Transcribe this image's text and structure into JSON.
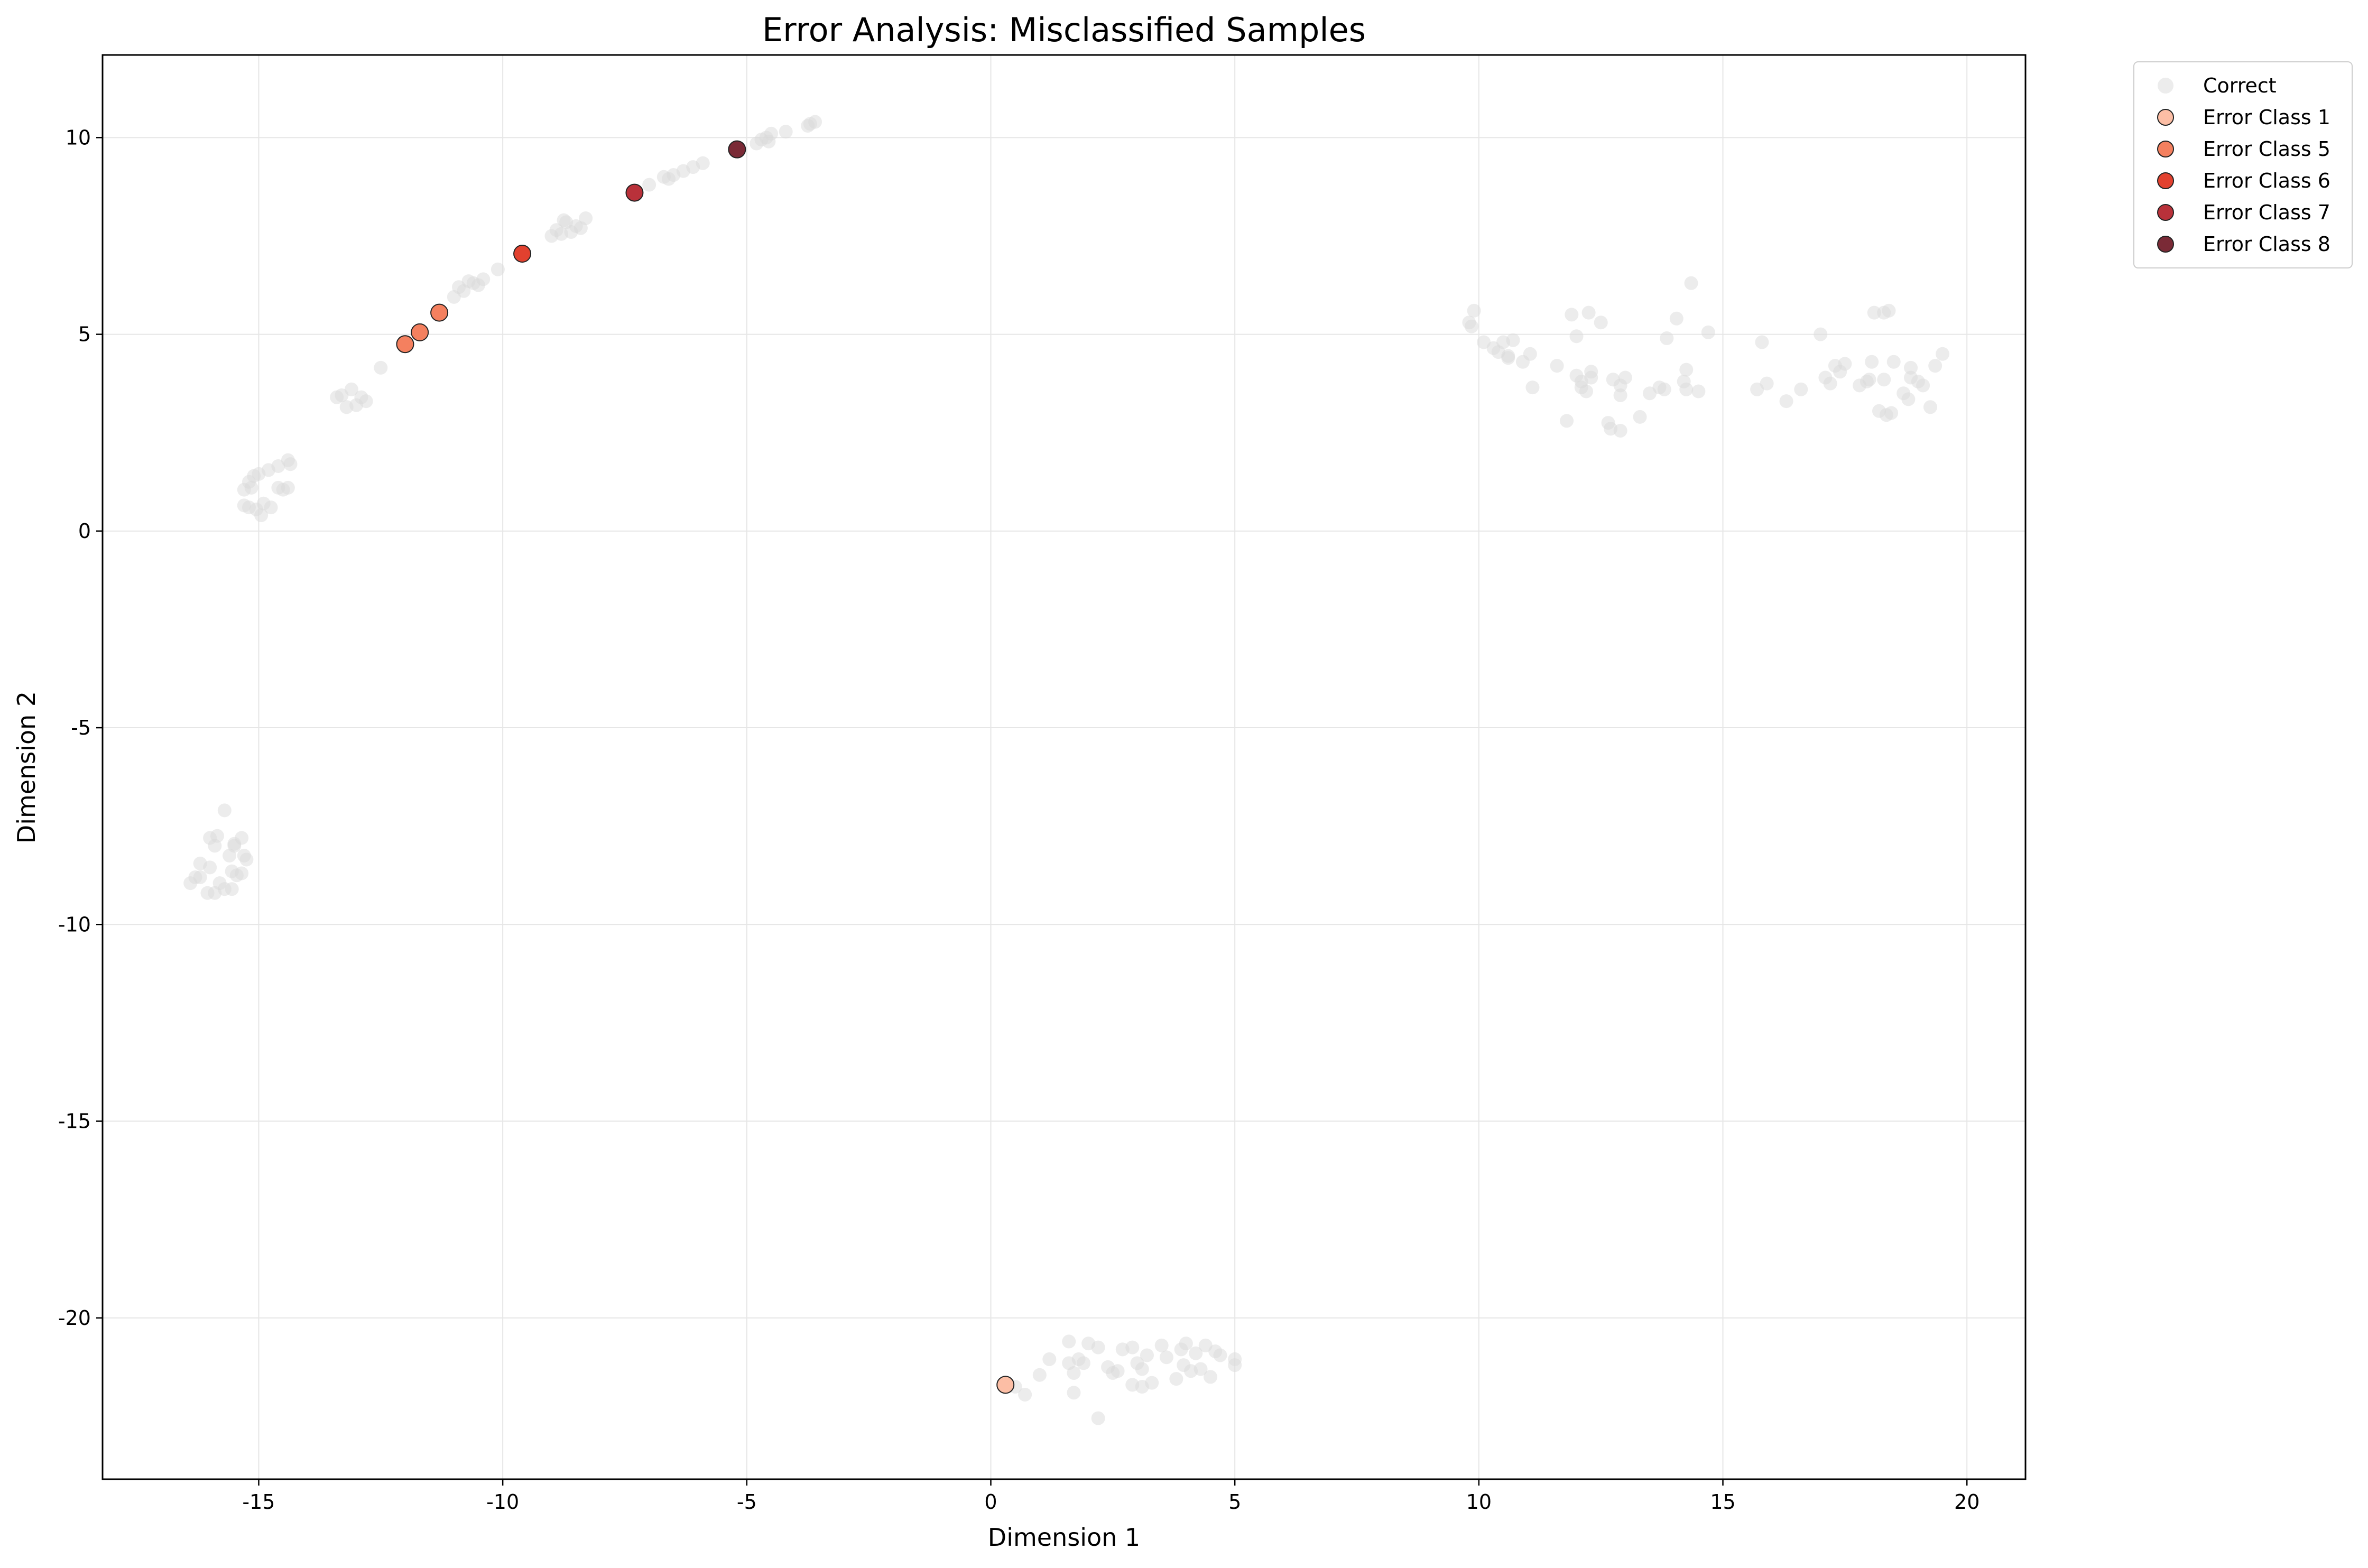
{
  "chart_data": {
    "type": "scatter",
    "title": "Error Analysis: Misclassified Samples",
    "xlabel": "Dimension 1",
    "ylabel": "Dimension 2",
    "xlim": [
      -18.2,
      21.2
    ],
    "ylim": [
      -24.1,
      12.1
    ],
    "xticks": [
      -15,
      -10,
      -5,
      0,
      5,
      10,
      15,
      20
    ],
    "yticks": [
      10,
      5,
      0,
      -5,
      -10,
      -15,
      -20
    ],
    "grid": true,
    "legend_position": "outside-top-right",
    "series": [
      {
        "name": "Correct",
        "color": "#d9d9d9",
        "opacity": 0.5,
        "edge": "none",
        "points": [
          [
            -12.5,
            4.15
          ],
          [
            -13.3,
            3.45
          ],
          [
            -13.1,
            3.6
          ],
          [
            -12.9,
            3.4
          ],
          [
            -13.0,
            3.2
          ],
          [
            -13.2,
            3.15
          ],
          [
            -12.8,
            3.3
          ],
          [
            -13.4,
            3.4
          ],
          [
            -15.3,
            1.05
          ],
          [
            -15.2,
            1.25
          ],
          [
            -15.0,
            1.45
          ],
          [
            -14.8,
            1.55
          ],
          [
            -14.6,
            1.65
          ],
          [
            -14.4,
            1.8
          ],
          [
            -14.35,
            1.7
          ],
          [
            -15.1,
            1.4
          ],
          [
            -14.6,
            1.1
          ],
          [
            -14.5,
            1.05
          ],
          [
            -14.4,
            1.1
          ],
          [
            -14.9,
            0.7
          ],
          [
            -15.2,
            0.6
          ],
          [
            -15.05,
            0.55
          ],
          [
            -14.95,
            0.4
          ],
          [
            -14.75,
            0.6
          ],
          [
            -15.3,
            0.65
          ],
          [
            -15.15,
            1.1
          ],
          [
            -10.8,
            6.1
          ],
          [
            -10.6,
            6.3
          ],
          [
            -10.4,
            6.4
          ],
          [
            -10.5,
            6.25
          ],
          [
            -10.1,
            6.65
          ],
          [
            -10.9,
            6.2
          ],
          [
            -11.0,
            5.95
          ],
          [
            -10.7,
            6.35
          ],
          [
            -8.9,
            7.65
          ],
          [
            -8.7,
            7.85
          ],
          [
            -8.5,
            7.75
          ],
          [
            -8.3,
            7.95
          ],
          [
            -8.8,
            7.55
          ],
          [
            -8.6,
            7.6
          ],
          [
            -8.4,
            7.7
          ],
          [
            -9.0,
            7.5
          ],
          [
            -8.75,
            7.9
          ],
          [
            -7.0,
            8.8
          ],
          [
            -6.7,
            9.0
          ],
          [
            -6.5,
            9.05
          ],
          [
            -6.3,
            9.15
          ],
          [
            -6.1,
            9.25
          ],
          [
            -5.9,
            9.35
          ],
          [
            -6.6,
            8.95
          ],
          [
            -4.8,
            9.85
          ],
          [
            -4.6,
            10.0
          ],
          [
            -4.5,
            10.1
          ],
          [
            -4.2,
            10.15
          ],
          [
            -4.7,
            9.95
          ],
          [
            -4.55,
            9.9
          ],
          [
            -3.7,
            10.35
          ],
          [
            -3.6,
            10.4
          ],
          [
            -3.75,
            10.3
          ],
          [
            -15.7,
            -7.1
          ],
          [
            -16.0,
            -7.8
          ],
          [
            -15.85,
            -7.75
          ],
          [
            -15.5,
            -7.95
          ],
          [
            -15.35,
            -7.8
          ],
          [
            -15.9,
            -8.0
          ],
          [
            -16.2,
            -8.45
          ],
          [
            -16.0,
            -8.55
          ],
          [
            -15.6,
            -8.25
          ],
          [
            -15.3,
            -8.25
          ],
          [
            -15.25,
            -8.35
          ],
          [
            -16.3,
            -8.8
          ],
          [
            -16.2,
            -8.8
          ],
          [
            -15.55,
            -8.65
          ],
          [
            -15.45,
            -8.75
          ],
          [
            -15.35,
            -8.7
          ],
          [
            -16.4,
            -8.95
          ],
          [
            -15.8,
            -8.95
          ],
          [
            -15.7,
            -9.1
          ],
          [
            -15.55,
            -9.1
          ],
          [
            -16.05,
            -9.2
          ],
          [
            -15.9,
            -9.2
          ],
          [
            -15.5,
            -8.0
          ],
          [
            0.7,
            -21.95
          ],
          [
            1.0,
            -21.45
          ],
          [
            1.2,
            -21.05
          ],
          [
            1.6,
            -20.6
          ],
          [
            1.6,
            -21.15
          ],
          [
            1.7,
            -21.4
          ],
          [
            1.8,
            -21.05
          ],
          [
            1.9,
            -21.15
          ],
          [
            2.0,
            -20.65
          ],
          [
            2.2,
            -20.75
          ],
          [
            2.2,
            -22.55
          ],
          [
            1.7,
            -21.9
          ],
          [
            2.4,
            -21.25
          ],
          [
            2.5,
            -21.4
          ],
          [
            2.6,
            -21.35
          ],
          [
            2.7,
            -20.8
          ],
          [
            2.9,
            -20.75
          ],
          [
            2.9,
            -21.7
          ],
          [
            3.0,
            -21.15
          ],
          [
            3.1,
            -21.3
          ],
          [
            3.1,
            -21.75
          ],
          [
            3.2,
            -20.95
          ],
          [
            3.3,
            -21.65
          ],
          [
            3.5,
            -20.7
          ],
          [
            3.6,
            -21.0
          ],
          [
            3.8,
            -21.55
          ],
          [
            3.9,
            -20.8
          ],
          [
            3.95,
            -21.2
          ],
          [
            4.0,
            -20.65
          ],
          [
            4.1,
            -21.35
          ],
          [
            4.2,
            -20.9
          ],
          [
            4.3,
            -21.3
          ],
          [
            4.4,
            -20.7
          ],
          [
            4.5,
            -21.5
          ],
          [
            4.6,
            -20.85
          ],
          [
            4.7,
            -20.95
          ],
          [
            5.0,
            -21.05
          ],
          [
            5.0,
            -21.2
          ],
          [
            0.5,
            -21.75
          ],
          [
            9.8,
            5.3
          ],
          [
            9.9,
            5.6
          ],
          [
            9.85,
            5.2
          ],
          [
            10.1,
            4.8
          ],
          [
            10.3,
            4.65
          ],
          [
            10.4,
            4.55
          ],
          [
            10.5,
            4.8
          ],
          [
            10.6,
            4.4
          ],
          [
            10.6,
            4.45
          ],
          [
            10.7,
            4.85
          ],
          [
            10.9,
            4.3
          ],
          [
            11.05,
            4.5
          ],
          [
            11.1,
            3.65
          ],
          [
            11.6,
            4.2
          ],
          [
            11.8,
            2.8
          ],
          [
            11.9,
            5.5
          ],
          [
            12.0,
            4.95
          ],
          [
            12.0,
            3.95
          ],
          [
            12.1,
            3.8
          ],
          [
            12.1,
            3.65
          ],
          [
            12.2,
            3.55
          ],
          [
            12.25,
            5.55
          ],
          [
            12.3,
            3.9
          ],
          [
            12.3,
            4.05
          ],
          [
            12.5,
            5.3
          ],
          [
            12.65,
            2.75
          ],
          [
            12.7,
            2.6
          ],
          [
            12.75,
            3.85
          ],
          [
            12.9,
            2.55
          ],
          [
            12.9,
            3.45
          ],
          [
            12.9,
            3.7
          ],
          [
            13.0,
            3.9
          ],
          [
            13.3,
            2.9
          ],
          [
            13.5,
            3.5
          ],
          [
            13.7,
            3.65
          ],
          [
            13.8,
            3.6
          ],
          [
            13.85,
            4.9
          ],
          [
            14.05,
            5.4
          ],
          [
            14.2,
            3.8
          ],
          [
            14.25,
            4.1
          ],
          [
            14.25,
            3.6
          ],
          [
            14.35,
            6.3
          ],
          [
            14.5,
            3.55
          ],
          [
            14.7,
            5.05
          ],
          [
            15.7,
            3.6
          ],
          [
            15.8,
            4.8
          ],
          [
            15.9,
            3.75
          ],
          [
            16.3,
            3.3
          ],
          [
            16.6,
            3.6
          ],
          [
            17.0,
            5.0
          ],
          [
            17.1,
            3.9
          ],
          [
            17.2,
            3.75
          ],
          [
            17.3,
            4.2
          ],
          [
            17.4,
            4.05
          ],
          [
            17.5,
            4.25
          ],
          [
            17.8,
            3.7
          ],
          [
            17.95,
            3.8
          ],
          [
            18.0,
            3.85
          ],
          [
            18.05,
            4.3
          ],
          [
            18.1,
            5.55
          ],
          [
            18.2,
            3.05
          ],
          [
            18.3,
            3.85
          ],
          [
            18.3,
            5.55
          ],
          [
            18.35,
            2.95
          ],
          [
            18.4,
            5.6
          ],
          [
            18.45,
            3.0
          ],
          [
            18.5,
            4.3
          ],
          [
            18.7,
            3.5
          ],
          [
            18.8,
            3.35
          ],
          [
            18.85,
            3.9
          ],
          [
            18.85,
            4.15
          ],
          [
            19.0,
            3.8
          ],
          [
            19.1,
            3.7
          ],
          [
            19.25,
            3.15
          ],
          [
            19.35,
            4.2
          ],
          [
            19.5,
            4.5
          ]
        ]
      },
      {
        "name": "Error Class 1",
        "color": "#fcbea5",
        "points": [
          [
            0.3,
            -21.7
          ]
        ]
      },
      {
        "name": "Error Class 5",
        "color": "#f4805f",
        "points": [
          [
            -12.0,
            4.75
          ],
          [
            -11.7,
            5.05
          ],
          [
            -11.3,
            5.55
          ]
        ]
      },
      {
        "name": "Error Class 6",
        "color": "#e2412f",
        "points": [
          [
            -9.6,
            7.05
          ]
        ]
      },
      {
        "name": "Error Class 7",
        "color": "#b9313a",
        "points": [
          [
            -7.3,
            8.6
          ]
        ]
      },
      {
        "name": "Error Class 8",
        "color": "#7a2a36",
        "points": [
          [
            -5.2,
            9.7
          ]
        ]
      }
    ]
  }
}
